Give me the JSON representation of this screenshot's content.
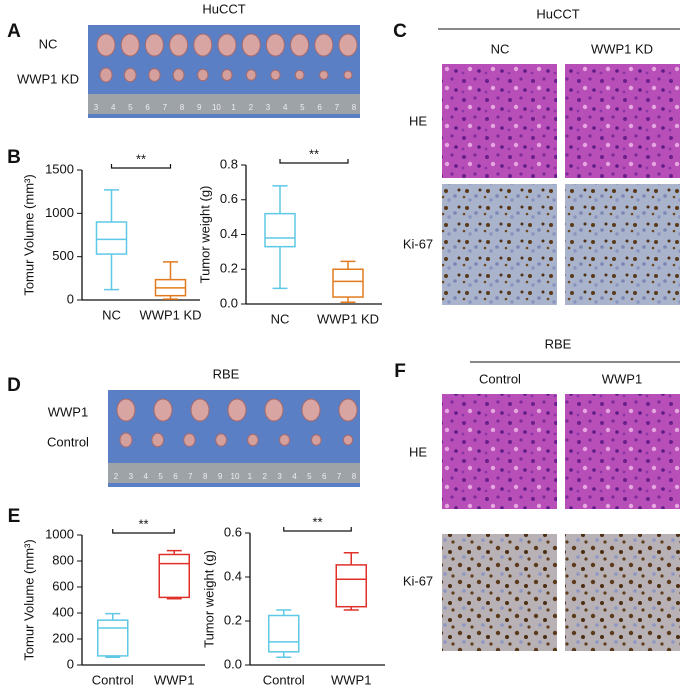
{
  "panel_labels": [
    "A",
    "B",
    "C",
    "D",
    "E",
    "F"
  ],
  "photos": {
    "A": {
      "title": "HuCCT",
      "rows": [
        "NC",
        "WWP1 KD"
      ],
      "ruler": [
        "3",
        "4",
        "5",
        "6",
        "7",
        "8",
        "9",
        "10",
        "1",
        "2",
        "3",
        "4",
        "5",
        "6",
        "7",
        "8"
      ]
    },
    "C": {
      "title": "HuCCT",
      "columns": [
        "NC",
        "WWP1 KD"
      ],
      "rows": [
        "HE",
        "Ki-67"
      ]
    },
    "D": {
      "title": "RBE",
      "rows": [
        "WWP1",
        "Control"
      ],
      "ruler": [
        "2",
        "3",
        "4",
        "5",
        "6",
        "7",
        "8",
        "9",
        "10",
        "1",
        "2",
        "3",
        "4",
        "5",
        "6",
        "7",
        "8"
      ]
    },
    "F": {
      "title": "RBE",
      "columns": [
        "Control",
        "WWP1"
      ],
      "rows": [
        "HE",
        "Ki-67"
      ]
    }
  },
  "chart_data": [
    {
      "type": "box",
      "ylabel": "Tomur Volume (mm³)",
      "categories": [
        "NC",
        "WWP1 KD"
      ],
      "colors": [
        "#5ec8e6",
        "#e27b1e"
      ],
      "min": [
        120,
        10
      ],
      "q1": [
        530,
        50
      ],
      "median": [
        700,
        140
      ],
      "q3": [
        900,
        235
      ],
      "max": [
        1270,
        440
      ],
      "ylim": [
        0,
        1500
      ],
      "yticks": [
        0,
        500,
        1000,
        1500
      ],
      "significance": "**"
    },
    {
      "type": "box",
      "ylabel": "Tumor weight (g)",
      "categories": [
        "NC",
        "WWP1 KD"
      ],
      "colors": [
        "#5ec8e6",
        "#e27b1e"
      ],
      "min": [
        0.09,
        0.01
      ],
      "q1": [
        0.33,
        0.04
      ],
      "median": [
        0.38,
        0.13
      ],
      "q3": [
        0.52,
        0.2
      ],
      "max": [
        0.68,
        0.245
      ],
      "ylim": [
        0,
        0.8
      ],
      "yticks": [
        {
          "value": 0,
          "label": "0.0"
        },
        0.2,
        0.4,
        0.6,
        0.8
      ],
      "significance": "**"
    },
    {
      "type": "box",
      "ylabel": "Tomur Volume (mm³)",
      "categories": [
        "Control",
        "WWP1"
      ],
      "colors": [
        "#5ec8e6",
        "#e0302a"
      ],
      "min": [
        60,
        510
      ],
      "q1": [
        70,
        520
      ],
      "median": [
        285,
        780
      ],
      "q3": [
        345,
        850
      ],
      "max": [
        395,
        880
      ],
      "ylim": [
        0,
        1000
      ],
      "yticks": [
        0,
        200,
        400,
        600,
        800,
        1000
      ],
      "significance": "**"
    },
    {
      "type": "box",
      "ylabel": "Tumor weight (g)",
      "categories": [
        "Control",
        "WWP1"
      ],
      "colors": [
        "#5ec8e6",
        "#e0302a"
      ],
      "min": [
        0.035,
        0.25
      ],
      "q1": [
        0.06,
        0.265
      ],
      "median": [
        0.105,
        0.39
      ],
      "q3": [
        0.225,
        0.455
      ],
      "max": [
        0.25,
        0.51
      ],
      "ylim": [
        0,
        0.6
      ],
      "yticks": [
        {
          "value": 0,
          "label": "0.0"
        },
        0.2,
        0.4,
        0.6
      ],
      "significance": "**"
    }
  ]
}
